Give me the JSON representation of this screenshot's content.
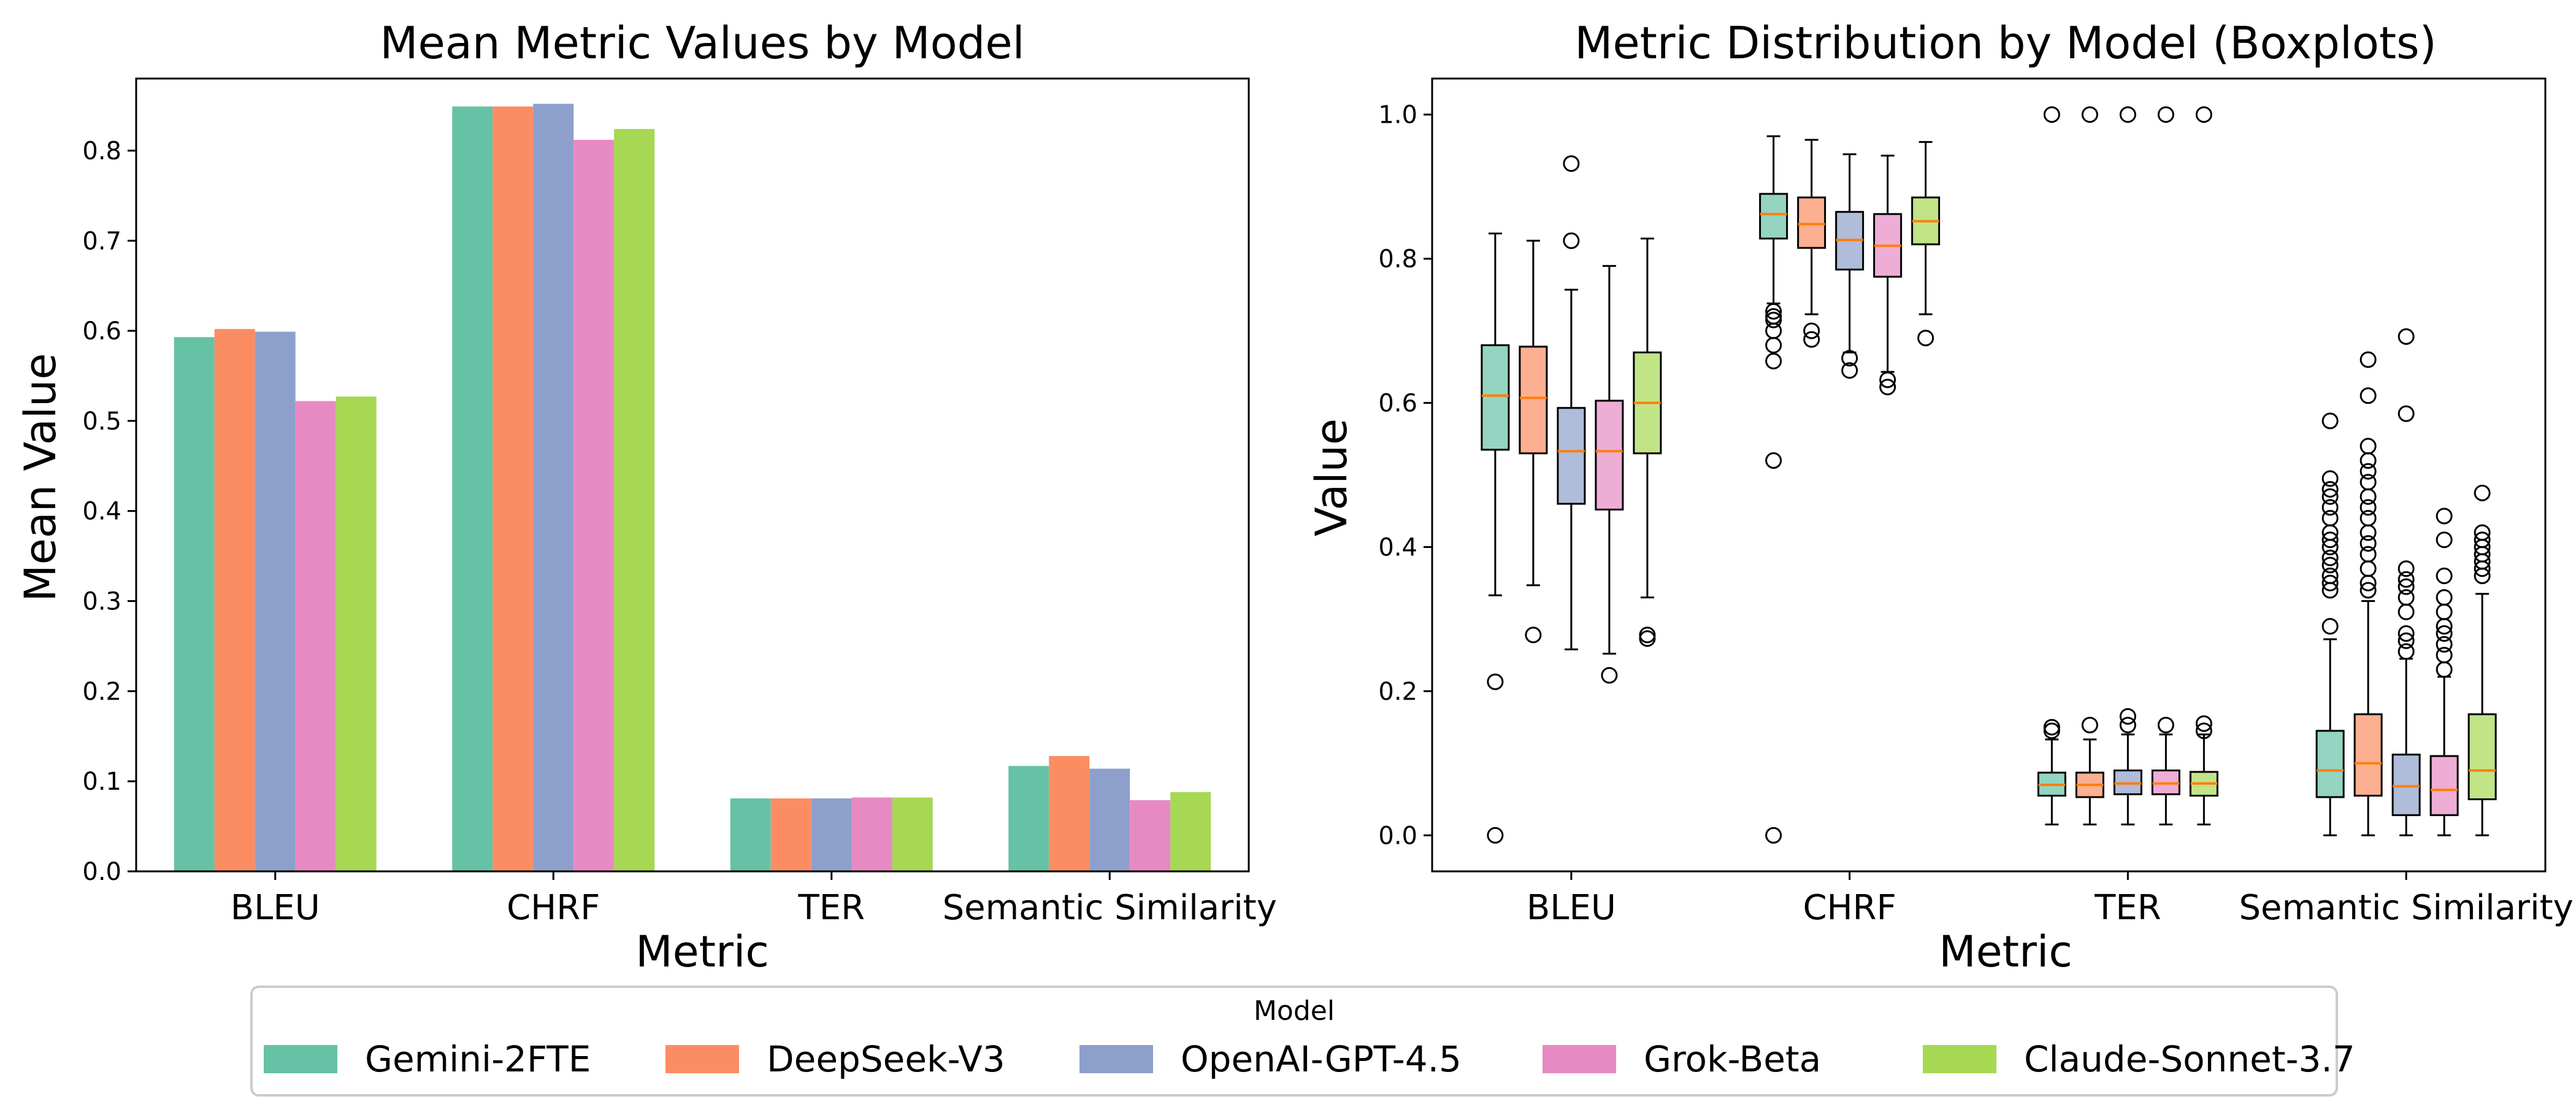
{
  "chart_data": [
    {
      "type": "bar",
      "title": "Mean Metric Values by Model",
      "xlabel": "Metric",
      "ylabel": "Mean Value",
      "ylim": [
        0,
        0.88
      ],
      "yticks": [
        0.0,
        0.1,
        0.2,
        0.3,
        0.4,
        0.5,
        0.6,
        0.7,
        0.8
      ],
      "categories": [
        "BLEU",
        "CHRF",
        "TER",
        "Semantic Similarity"
      ],
      "series": [
        {
          "name": "Gemini-2FTE",
          "values": [
            0.593,
            0.849,
            0.081,
            0.117
          ]
        },
        {
          "name": "DeepSeek-V3",
          "values": [
            0.602,
            0.849,
            0.081,
            0.128
          ]
        },
        {
          "name": "OpenAI-GPT-4.5",
          "values": [
            0.599,
            0.852,
            0.081,
            0.114
          ]
        },
        {
          "name": "Grok-Beta",
          "values": [
            0.522,
            0.812,
            0.082,
            0.079
          ]
        },
        {
          "name": "Claude-Sonnet-3.7",
          "values": [
            0.527,
            0.824,
            0.082,
            0.088
          ]
        }
      ]
    },
    {
      "type": "boxplot",
      "title": "Metric Distribution by Model (Boxplots)",
      "xlabel": "Metric",
      "ylabel": "Value",
      "ylim": [
        -0.05,
        1.05
      ],
      "yticks": [
        0.0,
        0.2,
        0.4,
        0.6,
        0.8,
        1.0
      ],
      "categories": [
        "BLEU",
        "CHRF",
        "TER",
        "Semantic Similarity"
      ],
      "series": [
        {
          "name": "Gemini-2FTE",
          "boxes": [
            {
              "q1": 0.535,
              "median": 0.61,
              "q3": 0.68,
              "whisker_low": 0.333,
              "whisker_high": 0.835,
              "outliers": [
                0.213,
                0.0
              ]
            },
            {
              "q1": 0.828,
              "median": 0.862,
              "q3": 0.89,
              "whisker_low": 0.738,
              "whisker_high": 0.97,
              "outliers": [
                0.727,
                0.72,
                0.715,
                0.7,
                0.68,
                0.658,
                0.52,
                0.0
              ]
            },
            {
              "q1": 0.055,
              "median": 0.07,
              "q3": 0.087,
              "whisker_low": 0.015,
              "whisker_high": 0.133,
              "outliers": [
                0.145,
                0.15,
                1.0
              ]
            },
            {
              "q1": 0.053,
              "median": 0.09,
              "q3": 0.145,
              "whisker_low": 0.0,
              "whisker_high": 0.272,
              "outliers": [
                0.29,
                0.34,
                0.35,
                0.36,
                0.375,
                0.385,
                0.4,
                0.41,
                0.42,
                0.44,
                0.455,
                0.47,
                0.48,
                0.495,
                0.575
              ]
            }
          ]
        },
        {
          "name": "DeepSeek-V3",
          "boxes": [
            {
              "q1": 0.53,
              "median": 0.607,
              "q3": 0.678,
              "whisker_low": 0.347,
              "whisker_high": 0.825,
              "outliers": [
                0.278
              ]
            },
            {
              "q1": 0.815,
              "median": 0.848,
              "q3": 0.885,
              "whisker_low": 0.723,
              "whisker_high": 0.965,
              "outliers": [
                0.7,
                0.688
              ]
            },
            {
              "q1": 0.053,
              "median": 0.07,
              "q3": 0.087,
              "whisker_low": 0.015,
              "whisker_high": 0.133,
              "outliers": [
                0.153,
                1.0
              ]
            },
            {
              "q1": 0.055,
              "median": 0.1,
              "q3": 0.168,
              "whisker_low": 0.0,
              "whisker_high": 0.325,
              "outliers": [
                0.34,
                0.35,
                0.37,
                0.39,
                0.405,
                0.42,
                0.44,
                0.455,
                0.47,
                0.49,
                0.505,
                0.52,
                0.54,
                0.61,
                0.66
              ]
            }
          ]
        },
        {
          "name": "OpenAI-GPT-4.5",
          "boxes": [
            {
              "q1": 0.46,
              "median": 0.533,
              "q3": 0.593,
              "whisker_low": 0.258,
              "whisker_high": 0.757,
              "outliers": [
                0.825,
                0.932
              ]
            },
            {
              "q1": 0.785,
              "median": 0.826,
              "q3": 0.865,
              "whisker_low": 0.67,
              "whisker_high": 0.945,
              "outliers": [
                0.662,
                0.645
              ]
            },
            {
              "q1": 0.057,
              "median": 0.072,
              "q3": 0.09,
              "whisker_low": 0.015,
              "whisker_high": 0.14,
              "outliers": [
                0.153,
                0.165,
                1.0
              ]
            },
            {
              "q1": 0.028,
              "median": 0.068,
              "q3": 0.112,
              "whisker_low": 0.0,
              "whisker_high": 0.245,
              "outliers": [
                0.255,
                0.27,
                0.28,
                0.31,
                0.33,
                0.345,
                0.355,
                0.37,
                0.585,
                0.692
              ]
            }
          ]
        },
        {
          "name": "Grok-Beta",
          "boxes": [
            {
              "q1": 0.452,
              "median": 0.533,
              "q3": 0.603,
              "whisker_low": 0.252,
              "whisker_high": 0.79,
              "outliers": [
                0.222
              ]
            },
            {
              "q1": 0.775,
              "median": 0.818,
              "q3": 0.862,
              "whisker_low": 0.643,
              "whisker_high": 0.943,
              "outliers": [
                0.632,
                0.622
              ]
            },
            {
              "q1": 0.057,
              "median": 0.072,
              "q3": 0.09,
              "whisker_low": 0.015,
              "whisker_high": 0.14,
              "outliers": [
                0.153,
                1.0
              ]
            },
            {
              "q1": 0.028,
              "median": 0.063,
              "q3": 0.11,
              "whisker_low": 0.0,
              "whisker_high": 0.22,
              "outliers": [
                0.23,
                0.25,
                0.265,
                0.28,
                0.29,
                0.31,
                0.33,
                0.36,
                0.41,
                0.443
              ]
            }
          ]
        },
        {
          "name": "Claude-Sonnet-3.7",
          "boxes": [
            {
              "q1": 0.53,
              "median": 0.6,
              "q3": 0.67,
              "whisker_low": 0.33,
              "whisker_high": 0.828,
              "outliers": [
                0.278,
                0.273
              ]
            },
            {
              "q1": 0.82,
              "median": 0.852,
              "q3": 0.885,
              "whisker_low": 0.723,
              "whisker_high": 0.962,
              "outliers": [
                0.69
              ]
            },
            {
              "q1": 0.055,
              "median": 0.072,
              "q3": 0.088,
              "whisker_low": 0.015,
              "whisker_high": 0.14,
              "outliers": [
                0.145,
                0.155,
                1.0
              ]
            },
            {
              "q1": 0.05,
              "median": 0.09,
              "q3": 0.168,
              "whisker_low": 0.0,
              "whisker_high": 0.335,
              "outliers": [
                0.36,
                0.37,
                0.38,
                0.39,
                0.4,
                0.41,
                0.42,
                0.475
              ]
            }
          ]
        }
      ]
    }
  ],
  "legend": {
    "title": "Model",
    "placement": "bottom-center",
    "items": [
      {
        "label": "Gemini-2FTE",
        "color": "#66c2a5"
      },
      {
        "label": "DeepSeek-V3",
        "color": "#fc8d62"
      },
      {
        "label": "OpenAI-GPT-4.5",
        "color": "#8da0cb"
      },
      {
        "label": "Grok-Beta",
        "color": "#e78ac3"
      },
      {
        "label": "Claude-Sonnet-3.7",
        "color": "#a6d854"
      }
    ]
  },
  "colors": {
    "median_line": "#ff7f0e",
    "box_alpha": 0.7
  }
}
